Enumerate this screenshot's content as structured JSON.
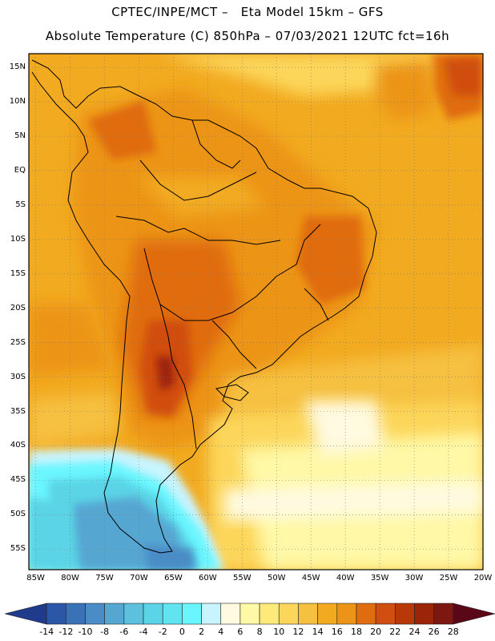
{
  "header": {
    "line1": "CPTEC/INPE/MCT –   Eta Model 15km – GFS",
    "line2": "Absolute Temperature (C) 850hPa – 07/03/2021 12UTC fct=16h"
  },
  "map": {
    "region": "South America",
    "lon_range": [
      -86,
      -20
    ],
    "lat_range": [
      -58,
      17
    ],
    "lat_labels": [
      "15N",
      "10N",
      "5N",
      "EQ",
      "5S",
      "10S",
      "15S",
      "20S",
      "25S",
      "30S",
      "35S",
      "40S",
      "45S",
      "50S",
      "55S"
    ],
    "lat_values": [
      15,
      10,
      5,
      0,
      -5,
      -10,
      -15,
      -20,
      -25,
      -30,
      -35,
      -40,
      -45,
      -50,
      -55
    ],
    "lon_labels": [
      "85W",
      "80W",
      "75W",
      "70W",
      "65W",
      "60W",
      "55W",
      "50W",
      "45W",
      "40W",
      "35W",
      "30W",
      "25W",
      "20W"
    ],
    "lon_values": [
      -85,
      -80,
      -75,
      -70,
      -65,
      -60,
      -55,
      -50,
      -45,
      -40,
      -35,
      -30,
      -25,
      -20
    ],
    "grid": "dotted"
  },
  "colorbar": {
    "labels": [
      "-14",
      "-12",
      "-10",
      "-8",
      "-6",
      "-4",
      "-2",
      "0",
      "2",
      "4",
      "6",
      "8",
      "10",
      "12",
      "14",
      "16",
      "18",
      "20",
      "22",
      "24",
      "26",
      "28"
    ],
    "colors": [
      "#203a8c",
      "#2c56a6",
      "#3a72b8",
      "#4a8cc6",
      "#56a6d2",
      "#5cc0de",
      "#5ad4e6",
      "#60e4f0",
      "#6af6ff",
      "#c8f4ff",
      "#fffae0",
      "#fff8a6",
      "#fdea7a",
      "#fcd65a",
      "#f6c040",
      "#f2aa20",
      "#ec9418",
      "#e06c10",
      "#d04e10",
      "#b83808",
      "#9c2408",
      "#7c1810",
      "#5a0818"
    ]
  }
}
